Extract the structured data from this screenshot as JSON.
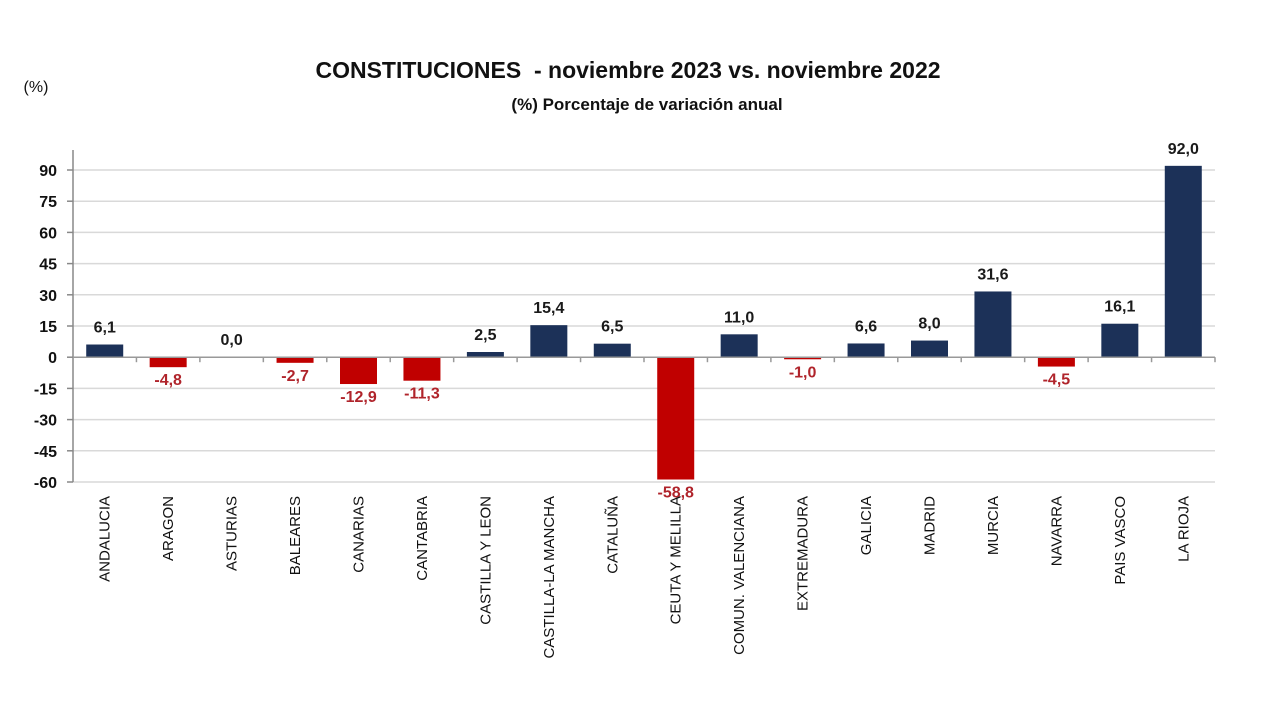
{
  "chart_data": {
    "type": "bar",
    "title": "CONSTITUCIONES  - noviembre 2023 vs. noviembre 2022",
    "subtitle": "(%) Porcentaje de variación anual",
    "ylabel": "(%)",
    "xlabel": "",
    "ylim": [
      -60,
      90
    ],
    "yticks": [
      90,
      75,
      60,
      45,
      30,
      15,
      0,
      -15,
      -30,
      -45,
      -60
    ],
    "grid": true,
    "categories": [
      "ANDALUCIA",
      "ARAGON",
      "ASTURIAS",
      "BALEARES",
      "CANARIAS",
      "CANTABRIA",
      "CASTILLA Y LEON",
      "CASTILLA-LA MANCHA",
      "CATALUÑA",
      "CEUTA Y MELILLA",
      "COMUN. VALENCIANA",
      "EXTREMADURA",
      "GALICIA",
      "MADRID",
      "MURCIA",
      "NAVARRA",
      "PAIS VASCO",
      "LA RIOJA"
    ],
    "values": [
      6.1,
      -4.8,
      0.0,
      -2.7,
      -12.9,
      -11.3,
      2.5,
      15.4,
      6.5,
      -58.8,
      11.0,
      -1.0,
      6.6,
      8.0,
      31.6,
      -4.5,
      16.1,
      92.0
    ],
    "labels": [
      "6,1",
      "-4,8",
      "0,0",
      "-2,7",
      "-12,9",
      "-11,3",
      "2,5",
      "15,4",
      "6,5",
      "-58,8",
      "11,0",
      "-1,0",
      "6,6",
      "8,0",
      "31,6",
      "-4,5",
      "16,1",
      "92,0"
    ],
    "colors": {
      "positive": "#1c3158",
      "negative": "#c00000",
      "positive_label": "#1a1a1a",
      "negative_label": "#b0242b",
      "grid": "#d9d9d9"
    }
  }
}
